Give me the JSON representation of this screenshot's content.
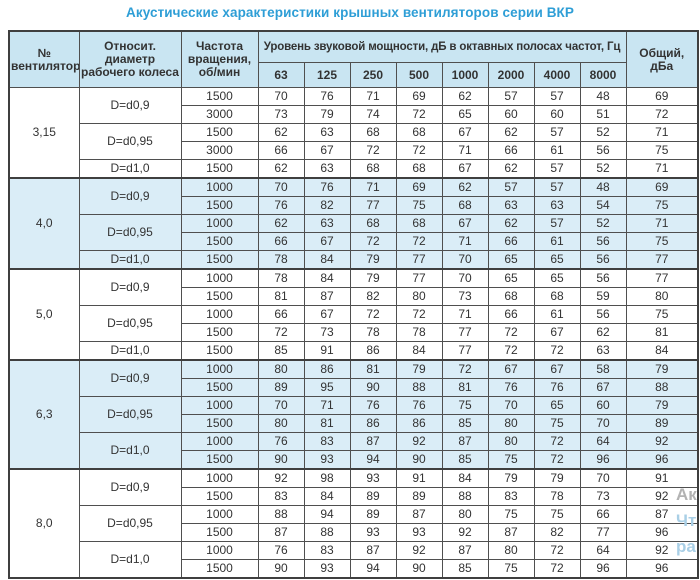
{
  "title": "Акустические характеристики крышных вентиляторов серии ВКР",
  "colors": {
    "title_blue": "#2e9ed6",
    "header_bg": "#c9e5f2",
    "group_tint_bg": "#daedf7",
    "border": "#4f4f4f",
    "text": "#333333"
  },
  "table": {
    "headers": {
      "fan": "№ вентилятора",
      "diameter": "Относит. диаметр рабочего колеса",
      "speed": "Частота вращения, об/мин",
      "span": "Уровень звуковой мощности, дБ в октавных полосах частот, Гц",
      "freqs": [
        "63",
        "125",
        "250",
        "500",
        "1000",
        "2000",
        "4000",
        "8000"
      ],
      "total": "Общий, дБа"
    },
    "groups": [
      {
        "fan": "3,15",
        "tinted": false,
        "subgroups": [
          {
            "diameter": "D=d0,9",
            "rows": [
              {
                "rpm": "1500",
                "values": [
                  70,
                  76,
                  71,
                  69,
                  62,
                  57,
                  57,
                  48
                ],
                "total": 69
              },
              {
                "rpm": "3000",
                "values": [
                  73,
                  79,
                  74,
                  72,
                  65,
                  60,
                  60,
                  51
                ],
                "total": 72
              }
            ]
          },
          {
            "diameter": "D=d0,95",
            "rows": [
              {
                "rpm": "1500",
                "values": [
                  62,
                  63,
                  68,
                  68,
                  67,
                  62,
                  57,
                  52
                ],
                "total": 71
              },
              {
                "rpm": "3000",
                "values": [
                  66,
                  67,
                  72,
                  72,
                  71,
                  66,
                  61,
                  56
                ],
                "total": 75
              }
            ]
          },
          {
            "diameter": "D=d1,0",
            "rows": [
              {
                "rpm": "1500",
                "values": [
                  62,
                  63,
                  68,
                  68,
                  67,
                  62,
                  57,
                  52
                ],
                "total": 71
              }
            ]
          }
        ]
      },
      {
        "fan": "4,0",
        "tinted": true,
        "subgroups": [
          {
            "diameter": "D=d0,9",
            "rows": [
              {
                "rpm": "1000",
                "values": [
                  70,
                  76,
                  71,
                  69,
                  62,
                  57,
                  57,
                  48
                ],
                "total": 69
              },
              {
                "rpm": "1500",
                "values": [
                  76,
                  82,
                  77,
                  75,
                  68,
                  63,
                  63,
                  54
                ],
                "total": 75
              }
            ]
          },
          {
            "diameter": "D=d0,95",
            "rows": [
              {
                "rpm": "1000",
                "values": [
                  62,
                  63,
                  68,
                  68,
                  67,
                  62,
                  57,
                  52
                ],
                "total": 71
              },
              {
                "rpm": "1500",
                "values": [
                  66,
                  67,
                  72,
                  72,
                  71,
                  66,
                  61,
                  56
                ],
                "total": 75
              }
            ]
          },
          {
            "diameter": "D=d1,0",
            "rows": [
              {
                "rpm": "1500",
                "values": [
                  78,
                  84,
                  79,
                  77,
                  70,
                  65,
                  65,
                  56
                ],
                "total": 77
              }
            ]
          }
        ]
      },
      {
        "fan": "5,0",
        "tinted": false,
        "subgroups": [
          {
            "diameter": "D=d0,9",
            "rows": [
              {
                "rpm": "1000",
                "values": [
                  78,
                  84,
                  79,
                  77,
                  70,
                  65,
                  65,
                  56
                ],
                "total": 77
              },
              {
                "rpm": "1500",
                "values": [
                  81,
                  87,
                  82,
                  80,
                  73,
                  68,
                  68,
                  59
                ],
                "total": 80
              }
            ]
          },
          {
            "diameter": "D=d0,95",
            "rows": [
              {
                "rpm": "1000",
                "values": [
                  66,
                  67,
                  72,
                  72,
                  71,
                  66,
                  61,
                  56
                ],
                "total": 75
              },
              {
                "rpm": "1500",
                "values": [
                  72,
                  73,
                  78,
                  78,
                  77,
                  72,
                  67,
                  62
                ],
                "total": 81
              }
            ]
          },
          {
            "diameter": "D=d1,0",
            "rows": [
              {
                "rpm": "1500",
                "values": [
                  85,
                  91,
                  86,
                  84,
                  77,
                  72,
                  72,
                  63
                ],
                "total": 84
              }
            ]
          }
        ]
      },
      {
        "fan": "6,3",
        "tinted": true,
        "subgroups": [
          {
            "diameter": "D=d0,9",
            "rows": [
              {
                "rpm": "1000",
                "values": [
                  80,
                  86,
                  81,
                  79,
                  72,
                  67,
                  67,
                  58
                ],
                "total": 79
              },
              {
                "rpm": "1500",
                "values": [
                  89,
                  95,
                  90,
                  88,
                  81,
                  76,
                  76,
                  67
                ],
                "total": 88
              }
            ]
          },
          {
            "diameter": "D=d0,95",
            "rows": [
              {
                "rpm": "1000",
                "values": [
                  70,
                  71,
                  76,
                  76,
                  75,
                  70,
                  65,
                  60
                ],
                "total": 79
              },
              {
                "rpm": "1500",
                "values": [
                  80,
                  81,
                  86,
                  86,
                  85,
                  80,
                  75,
                  70
                ],
                "total": 89
              }
            ]
          },
          {
            "diameter": "D=d1,0",
            "rows": [
              {
                "rpm": "1000",
                "values": [
                  76,
                  83,
                  87,
                  92,
                  87,
                  80,
                  72,
                  64
                ],
                "total": 92
              },
              {
                "rpm": "1500",
                "values": [
                  90,
                  93,
                  94,
                  90,
                  85,
                  75,
                  72,
                  96
                ],
                "total": 96
              }
            ]
          }
        ]
      },
      {
        "fan": "8,0",
        "tinted": false,
        "subgroups": [
          {
            "diameter": "D=d0,9",
            "rows": [
              {
                "rpm": "1000",
                "values": [
                  92,
                  98,
                  93,
                  91,
                  84,
                  79,
                  79,
                  70
                ],
                "total": 91
              },
              {
                "rpm": "1500",
                "values": [
                  83,
                  84,
                  89,
                  89,
                  88,
                  83,
                  78,
                  73
                ],
                "total": 92
              }
            ]
          },
          {
            "diameter": "D=d0,95",
            "rows": [
              {
                "rpm": "1000",
                "values": [
                  88,
                  94,
                  89,
                  87,
                  80,
                  75,
                  75,
                  66
                ],
                "total": 87
              },
              {
                "rpm": "1500",
                "values": [
                  87,
                  88,
                  93,
                  93,
                  92,
                  87,
                  82,
                  77
                ],
                "total": 96
              }
            ]
          },
          {
            "diameter": "D=d1,0",
            "rows": [
              {
                "rpm": "1000",
                "values": [
                  76,
                  83,
                  87,
                  92,
                  87,
                  80,
                  72,
                  64
                ],
                "total": 92
              },
              {
                "rpm": "1500",
                "values": [
                  90,
                  93,
                  94,
                  90,
                  85,
                  75,
                  72,
                  96
                ],
                "total": 96
              }
            ]
          }
        ]
      }
    ]
  },
  "watermark": {
    "line1": "Ак",
    "line2": "Чт",
    "line3": "ра"
  }
}
